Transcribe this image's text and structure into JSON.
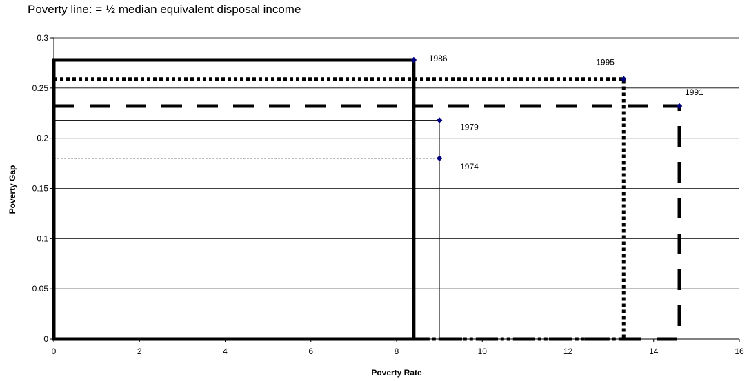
{
  "chart_data": {
    "type": "scatter",
    "title": "Poverty line: = ½ median equivalent disposal income",
    "xlabel": "Poverty Rate",
    "ylabel": "Poverty Gap",
    "xlim": [
      0,
      16
    ],
    "ylim": [
      0,
      0.3
    ],
    "x_ticks": [
      "0",
      "2",
      "4",
      "6",
      "8",
      "10",
      "12",
      "14",
      "16"
    ],
    "y_ticks": [
      "0",
      "0.05",
      "0.1",
      "0.15",
      "0.2",
      "0.25",
      "0.3"
    ],
    "grid": "horizontal",
    "marker_color": "#000080",
    "points": [
      {
        "label": "1974",
        "x": 9.0,
        "y": 0.18,
        "rect_style": "thin-dashed"
      },
      {
        "label": "1979",
        "x": 9.0,
        "y": 0.218,
        "rect_style": "thin-solid"
      },
      {
        "label": "1986",
        "x": 8.4,
        "y": 0.278,
        "rect_style": "thick-solid"
      },
      {
        "label": "1991",
        "x": 14.6,
        "y": 0.232,
        "rect_style": "thick-long-dash"
      },
      {
        "label": "1995",
        "x": 13.3,
        "y": 0.259,
        "rect_style": "thick-dotted"
      }
    ]
  }
}
